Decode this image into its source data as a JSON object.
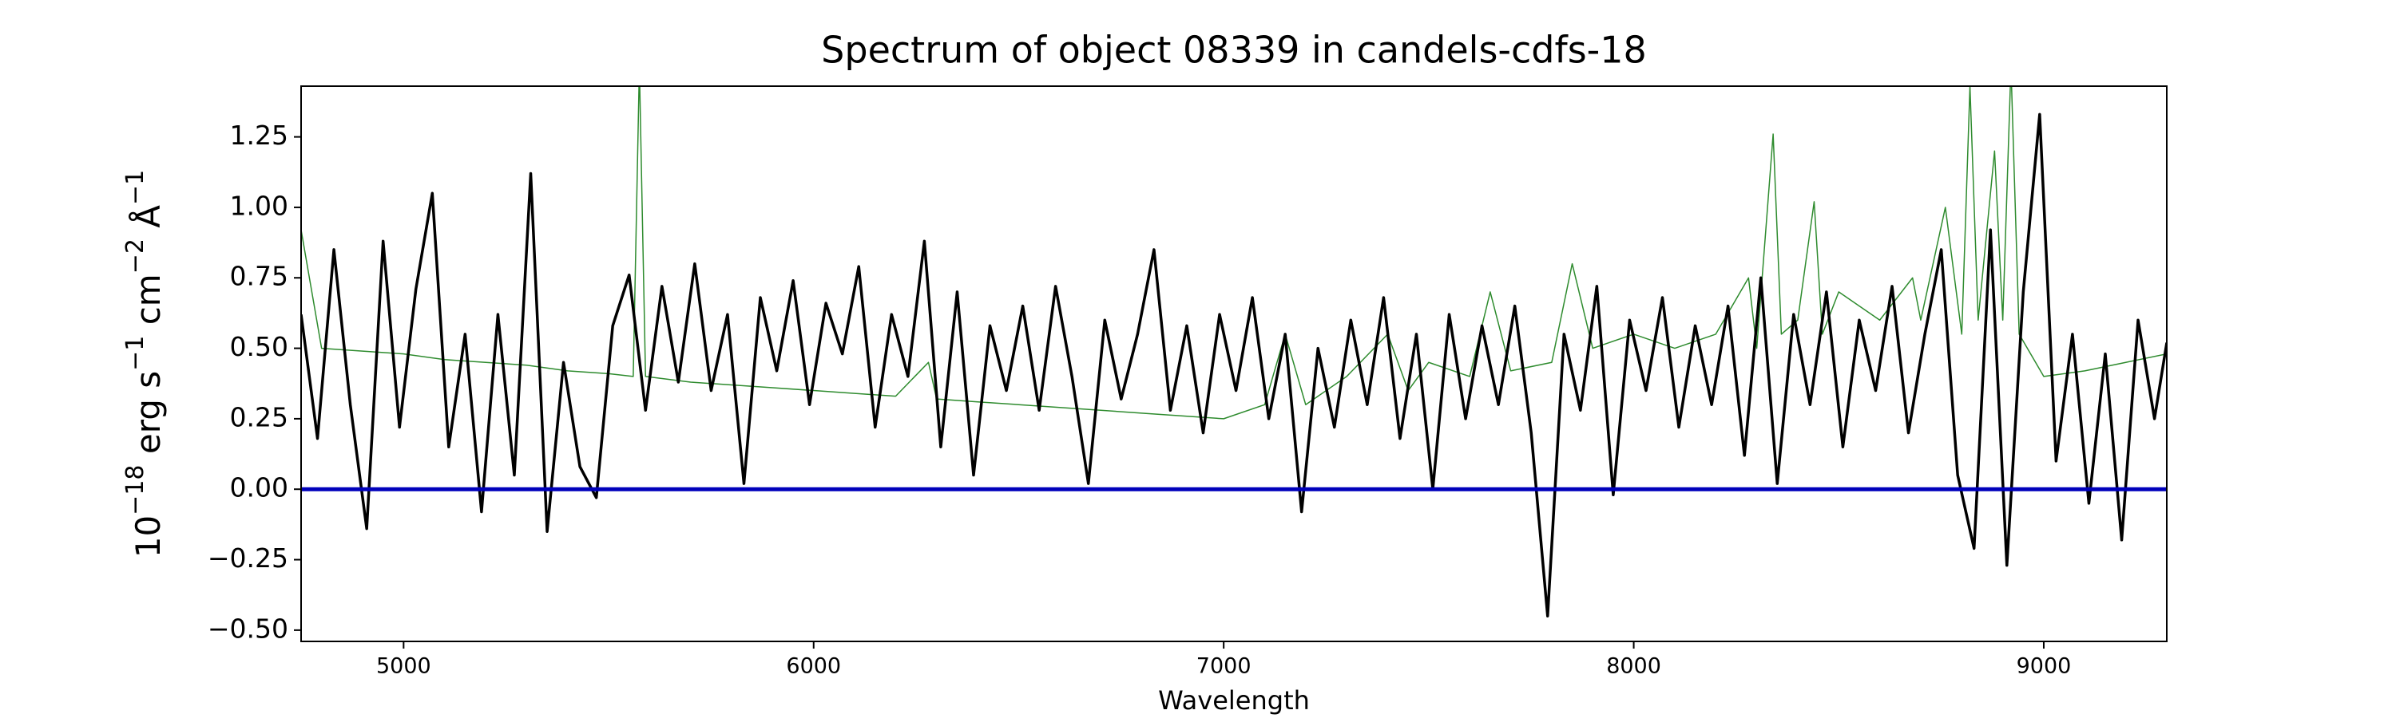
{
  "chart_data": {
    "type": "line",
    "title": "Spectrum of object 08339 in candels-cdfs-18",
    "xlabel": "Wavelength",
    "ylabel": [
      "10",
      "−18",
      " erg s",
      "−1",
      " cm",
      "−2",
      " Å",
      "−1"
    ],
    "xlim": [
      4750,
      9300
    ],
    "ylim": [
      -0.54,
      1.43
    ],
    "xticks": [
      5000,
      6000,
      7000,
      8000,
      9000
    ],
    "yticks": [
      {
        "value": -0.5,
        "label": "−0.50"
      },
      {
        "value": -0.25,
        "label": "−0.25"
      },
      {
        "value": 0,
        "label": "0.00"
      },
      0.25,
      {
        "value": 0.5,
        "label": "0.50"
      },
      0.75,
      {
        "value": 1,
        "label": "1.00"
      },
      1.25
    ],
    "series": [
      {
        "color": "#2e8b2e",
        "x": [
          4750,
          4800,
          4900,
          5000,
          5100,
          5200,
          5300,
          5400,
          5500,
          5560,
          5575,
          5590,
          5700,
          5800,
          5900,
          6000,
          6100,
          6200,
          6280,
          6300,
          6400,
          6500,
          6600,
          6700,
          6800,
          6900,
          7000,
          7100,
          7150,
          7200,
          7300,
          7400,
          7450,
          7500,
          7600,
          7650,
          7700,
          7800,
          7850,
          7900,
          8000,
          8100,
          8200,
          8280,
          8300,
          8340,
          8360,
          8400,
          8440,
          8460,
          8500,
          8600,
          8680,
          8700,
          8760,
          8800,
          8820,
          8840,
          8880,
          8900,
          8920,
          8940,
          9000,
          9100,
          9200,
          9300
        ],
        "values": [
          0.92,
          0.5,
          0.49,
          0.48,
          0.46,
          0.45,
          0.44,
          0.42,
          0.41,
          0.4,
          1.5,
          0.4,
          0.38,
          0.37,
          0.36,
          0.35,
          0.34,
          0.33,
          0.45,
          0.32,
          0.31,
          0.3,
          0.29,
          0.28,
          0.27,
          0.26,
          0.25,
          0.3,
          0.55,
          0.3,
          0.4,
          0.55,
          0.35,
          0.45,
          0.4,
          0.7,
          0.42,
          0.45,
          0.8,
          0.5,
          0.55,
          0.5,
          0.55,
          0.75,
          0.5,
          1.26,
          0.55,
          0.6,
          1.02,
          0.55,
          0.7,
          0.6,
          0.75,
          0.6,
          1.0,
          0.55,
          1.43,
          0.6,
          1.2,
          0.6,
          1.5,
          0.55,
          0.4,
          0.42,
          0.45,
          0.48
        ]
      },
      {
        "color": "#000000",
        "x": [
          4750,
          4790,
          4830,
          4870,
          4910,
          4950,
          4990,
          5030,
          5070,
          5110,
          5150,
          5190,
          5230,
          5270,
          5310,
          5350,
          5390,
          5430,
          5470,
          5510,
          5550,
          5590,
          5630,
          5670,
          5710,
          5750,
          5790,
          5830,
          5870,
          5910,
          5950,
          5990,
          6030,
          6070,
          6110,
          6150,
          6190,
          6230,
          6270,
          6310,
          6350,
          6390,
          6430,
          6470,
          6510,
          6550,
          6590,
          6630,
          6670,
          6710,
          6750,
          6790,
          6830,
          6870,
          6910,
          6950,
          6990,
          7030,
          7070,
          7110,
          7150,
          7190,
          7230,
          7270,
          7310,
          7350,
          7390,
          7430,
          7470,
          7510,
          7550,
          7590,
          7630,
          7670,
          7710,
          7750,
          7790,
          7830,
          7870,
          7910,
          7950,
          7990,
          8030,
          8070,
          8110,
          8150,
          8190,
          8230,
          8270,
          8310,
          8350,
          8390,
          8430,
          8470,
          8510,
          8550,
          8590,
          8630,
          8670,
          8710,
          8750,
          8790,
          8830,
          8870,
          8910,
          8950,
          8990,
          9030,
          9070,
          9110,
          9150,
          9190,
          9230,
          9270,
          9300
        ],
        "values": [
          0.62,
          0.18,
          0.85,
          0.3,
          -0.14,
          0.88,
          0.22,
          0.71,
          1.05,
          0.15,
          0.55,
          -0.08,
          0.62,
          0.05,
          1.12,
          -0.15,
          0.45,
          0.08,
          -0.03,
          0.58,
          0.76,
          0.28,
          0.72,
          0.38,
          0.8,
          0.35,
          0.62,
          0.02,
          0.68,
          0.42,
          0.74,
          0.3,
          0.66,
          0.48,
          0.79,
          0.22,
          0.62,
          0.4,
          0.88,
          0.15,
          0.7,
          0.05,
          0.58,
          0.35,
          0.65,
          0.28,
          0.72,
          0.4,
          0.02,
          0.6,
          0.32,
          0.55,
          0.85,
          0.28,
          0.58,
          0.2,
          0.62,
          0.35,
          0.68,
          0.25,
          0.55,
          -0.08,
          0.5,
          0.22,
          0.6,
          0.3,
          0.68,
          0.18,
          0.55,
          0.0,
          0.62,
          0.25,
          0.58,
          0.3,
          0.65,
          0.2,
          -0.45,
          0.55,
          0.28,
          0.72,
          -0.02,
          0.6,
          0.35,
          0.68,
          0.22,
          0.58,
          0.3,
          0.65,
          0.12,
          0.75,
          0.02,
          0.62,
          0.3,
          0.7,
          0.15,
          0.6,
          0.35,
          0.72,
          0.2,
          0.55,
          0.85,
          0.05,
          -0.21,
          0.92,
          -0.27,
          0.7,
          1.33,
          0.1,
          0.55,
          -0.05,
          0.48,
          -0.18,
          0.6,
          0.25,
          0.52
        ]
      },
      {
        "color": "#0000bb",
        "x": [
          4750,
          9300
        ],
        "values": [
          0,
          0
        ]
      }
    ]
  }
}
